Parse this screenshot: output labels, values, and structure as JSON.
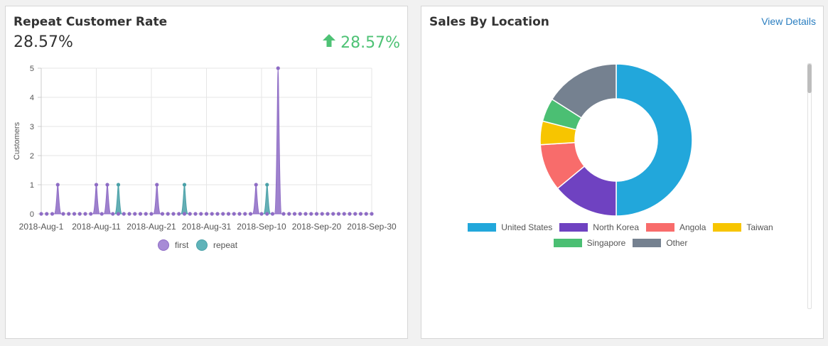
{
  "left_panel": {
    "title": "Repeat Customer Rate",
    "value": "28.57%",
    "change": "28.57%",
    "change_color": "#4ec275",
    "change_icon": "arrow-up-icon"
  },
  "right_panel": {
    "title": "Sales By Location",
    "view_details": "View Details"
  },
  "colors": {
    "first": "#8e6cc5",
    "repeat": "#4aa1a8"
  },
  "chart_data": [
    {
      "type": "line",
      "ylabel": "Customers",
      "xlabel": "",
      "ylim": [
        0,
        5
      ],
      "yticks": [
        "0",
        "1",
        "2",
        "3",
        "4",
        "5"
      ],
      "xtick_labels": [
        "2018-Aug-1",
        "2018-Aug-11",
        "2018-Aug-21",
        "2018-Aug-31",
        "2018-Sep-10",
        "2018-Sep-20",
        "2018-Sep-30"
      ],
      "x_start": "2018-Aug-1",
      "x_end": "2018-Sep-30",
      "grid": true,
      "legend_placement": "bottom",
      "series": [
        {
          "name": "first",
          "color": "#8e6cc5",
          "points": [
            {
              "x": "2018-Aug-4",
              "y": 1
            },
            {
              "x": "2018-Aug-11",
              "y": 1
            },
            {
              "x": "2018-Aug-13",
              "y": 1
            },
            {
              "x": "2018-Aug-22",
              "y": 1
            },
            {
              "x": "2018-Sep-9",
              "y": 1
            },
            {
              "x": "2018-Sep-13",
              "y": 5
            }
          ]
        },
        {
          "name": "repeat",
          "color": "#4aa1a8",
          "points": [
            {
              "x": "2018-Aug-15",
              "y": 1
            },
            {
              "x": "2018-Aug-27",
              "y": 1
            },
            {
              "x": "2018-Sep-11",
              "y": 1
            }
          ]
        }
      ]
    },
    {
      "type": "pie",
      "donut": true,
      "legend_placement": "bottom",
      "categories": [
        "United States",
        "North Korea",
        "Angola",
        "Taiwan",
        "Singapore",
        "Other"
      ],
      "values": [
        50,
        14,
        10,
        5,
        5,
        16
      ],
      "colors": [
        "#22a7db",
        "#6f42c1",
        "#f86c6b",
        "#f7c500",
        "#4bbf73",
        "#758190"
      ]
    }
  ]
}
